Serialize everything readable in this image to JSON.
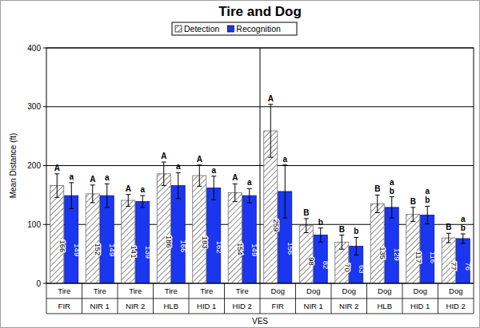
{
  "chart_data": {
    "type": "bar",
    "title": "Tire and Dog",
    "x_label": "VES",
    "y_label": "Mean Distance (ft)",
    "categories": [
      [
        "Tire",
        "FIR"
      ],
      [
        "Tire",
        "NIR 1"
      ],
      [
        "Tire",
        "NIR 2"
      ],
      [
        "Tire",
        "HLB"
      ],
      [
        "Tire",
        "HID 1"
      ],
      [
        "Tire",
        "HID 2"
      ],
      [
        "Dog",
        "FIR"
      ],
      [
        "Dog",
        "NIR 1"
      ],
      [
        "Dog",
        "NIR 2"
      ],
      [
        "Dog",
        "HLB"
      ],
      [
        "Dog",
        "HID 1"
      ],
      [
        "Dog",
        "HID 2"
      ]
    ],
    "series": [
      {
        "name": "Detection",
        "color": "#ffffff",
        "values": [
          166,
          152,
          141,
          186,
          183,
          154,
          259,
          98,
          70,
          135,
          117,
          77
        ],
        "errors": [
          20,
          15,
          10,
          20,
          18,
          15,
          45,
          12,
          12,
          15,
          12,
          8
        ],
        "letters": [
          [
            "A"
          ],
          [
            "A"
          ],
          [
            "A"
          ],
          [
            "A"
          ],
          [
            "A"
          ],
          [
            "A"
          ],
          [
            "A"
          ],
          [
            "B"
          ],
          [
            "B"
          ],
          [
            "B"
          ],
          [
            "B"
          ],
          [
            "B"
          ]
        ]
      },
      {
        "name": "Recognition",
        "color": "#1a36f0",
        "values": [
          149,
          149,
          139,
          166,
          162,
          149,
          156,
          82,
          63,
          129,
          116,
          76
        ],
        "errors": [
          22,
          20,
          10,
          22,
          20,
          12,
          45,
          12,
          15,
          18,
          15,
          8
        ],
        "letters": [
          [
            "a"
          ],
          [
            "a"
          ],
          [
            "a"
          ],
          [
            "a"
          ],
          [
            "a"
          ],
          [
            "a"
          ],
          [
            "a"
          ],
          [
            "b"
          ],
          [
            "b"
          ],
          [
            "a",
            "b"
          ],
          [
            "a",
            "b"
          ],
          [
            "a",
            "b"
          ]
        ]
      }
    ],
    "ylim": [
      0,
      400
    ],
    "yticks": [
      0,
      100,
      200,
      300,
      400
    ],
    "grid": true,
    "legend": "top",
    "data_labels": true
  }
}
